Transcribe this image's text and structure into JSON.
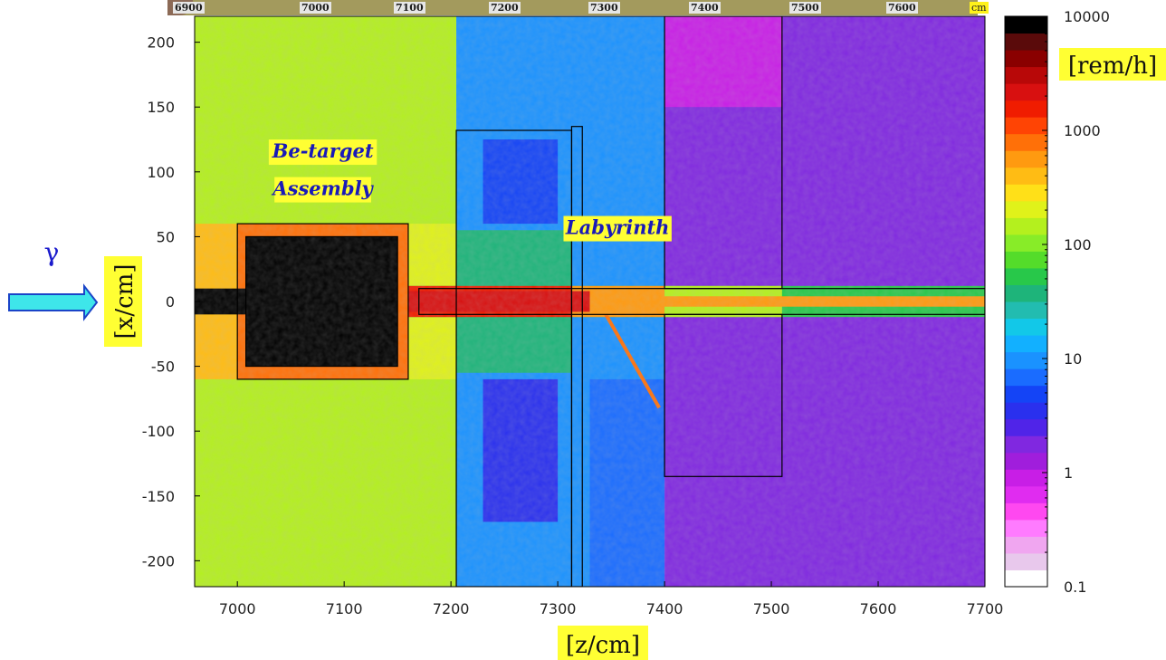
{
  "ruler": {
    "labels": [
      "6900",
      "7000",
      "7100",
      "7200",
      "7300",
      "7400",
      "7500",
      "7600"
    ],
    "unit": "cm"
  },
  "beam_symbol": "γ",
  "chart_data": {
    "type": "heatmap",
    "xlabel": "[z/cm]",
    "ylabel": "[x/cm]",
    "xlim": [
      6960,
      7700
    ],
    "ylim": [
      -220,
      220
    ],
    "x_ticks": [
      7000,
      7100,
      7200,
      7300,
      7400,
      7500,
      7600,
      7700
    ],
    "y_ticks": [
      200,
      150,
      100,
      50,
      0,
      -50,
      -100,
      -150,
      -200
    ],
    "colorbar": {
      "unit": "[rem/h]",
      "scale": "log",
      "range": [
        0.1,
        10000
      ],
      "tick_labels": [
        "10000",
        "1000",
        "100",
        "10",
        "1",
        "0.1"
      ],
      "tick_values": [
        10000,
        1000,
        100,
        10,
        1,
        0.1
      ],
      "colors": [
        "#ffffff",
        "#e8c8ec",
        "#f0a6f0",
        "#ff7bff",
        "#ff48f0",
        "#e02cf0",
        "#c81ee6",
        "#a01edc",
        "#8028e0",
        "#5024e8",
        "#2a30ee",
        "#1444f6",
        "#1a6cff",
        "#1a92ff",
        "#12b0ff",
        "#12c8e8",
        "#22bcb0",
        "#1eb47a",
        "#28c84a",
        "#54dc2a",
        "#88ec28",
        "#b4f01e",
        "#e0f21a",
        "#ffe018",
        "#ffbc14",
        "#ff9a10",
        "#ff7008",
        "#ff4404",
        "#f01c00",
        "#d81010",
        "#b80808",
        "#8a0000",
        "#5a0a0a",
        "#000000"
      ]
    },
    "annotations": [
      {
        "text": "Be-target",
        "z": 7080,
        "x": 111
      },
      {
        "text": "Assembly",
        "z": 7080,
        "x": 82
      },
      {
        "text": "Labyrinth",
        "z": 7356,
        "x": 52
      }
    ],
    "structures": [
      {
        "name": "be-target-outer",
        "z": [
          7000,
          7160
        ],
        "x": [
          -60,
          60
        ]
      },
      {
        "name": "be-target-inner",
        "z": [
          7008,
          7150
        ],
        "x": [
          -50,
          50
        ]
      },
      {
        "name": "beam-pipe",
        "z": [
          7170,
          7700
        ],
        "x": [
          -10,
          10
        ]
      },
      {
        "name": "labyrinth-wall",
        "z": [
          7205,
          7313
        ],
        "x": [
          -220,
          132
        ]
      },
      {
        "name": "labyrinth-wall-2",
        "z": [
          7313,
          7323
        ],
        "x": [
          -220,
          135
        ]
      },
      {
        "name": "shield-block-lower",
        "z": [
          7400,
          7510
        ],
        "x": [
          -135,
          -10
        ]
      },
      {
        "name": "shield-block-upper",
        "z": [
          7400,
          7510
        ],
        "x": [
          10,
          220
        ]
      }
    ]
  }
}
